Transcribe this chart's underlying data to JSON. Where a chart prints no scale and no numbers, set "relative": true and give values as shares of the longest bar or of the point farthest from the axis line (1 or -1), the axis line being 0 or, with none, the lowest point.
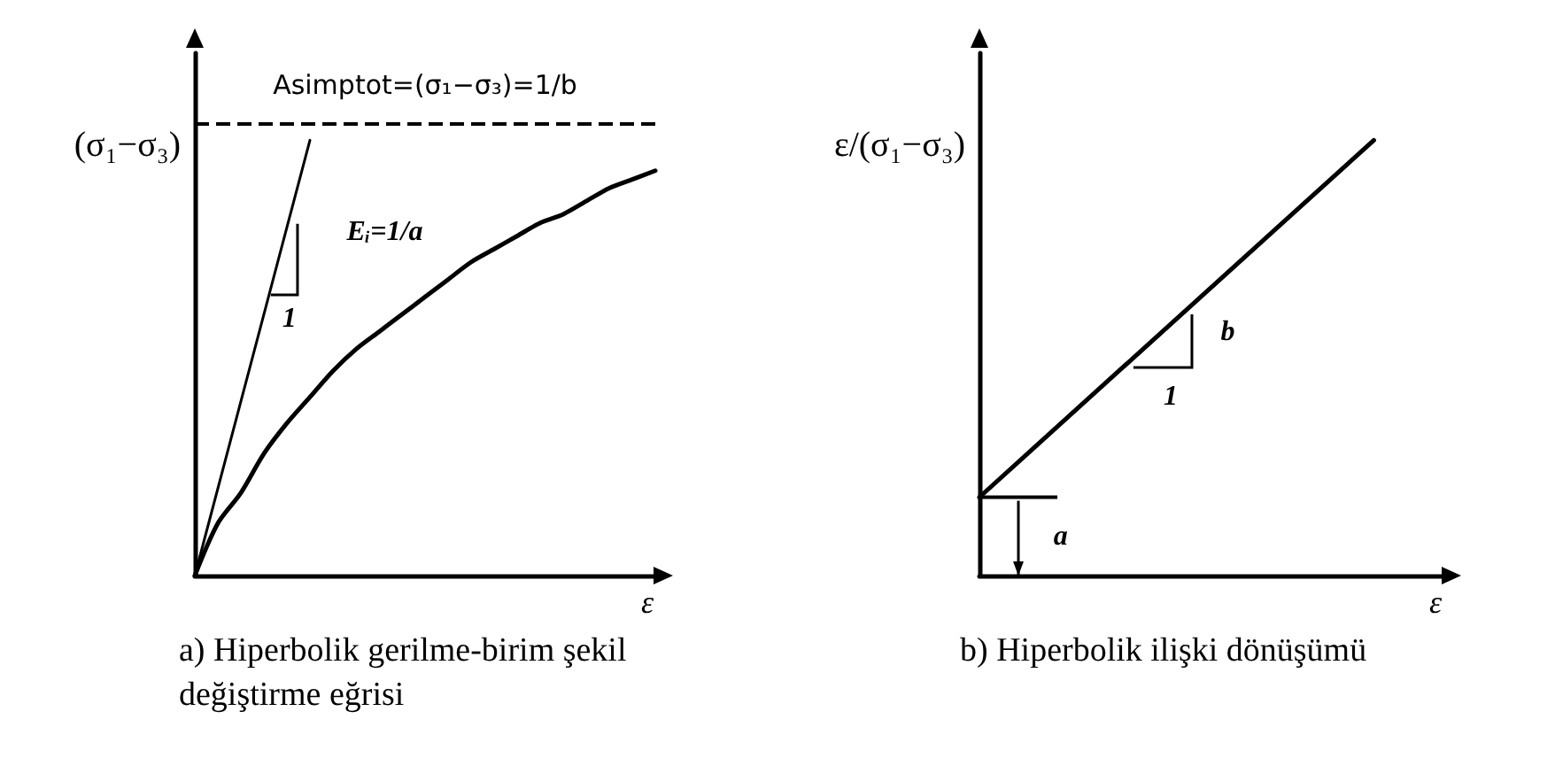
{
  "chart_data": [
    {
      "type": "line",
      "relative": true,
      "title": "a) Hiperbolik gerilme-birim şekil değiştirme eğrisi",
      "xlabel": "ε",
      "ylabel": "(σ₁−σ₃)",
      "categories": [
        null,
        null,
        null,
        null,
        null,
        null,
        null,
        null,
        null,
        null,
        null,
        null,
        null,
        null,
        null,
        null,
        null,
        null,
        null,
        null,
        null
      ],
      "series": [
        {
          "color": "#000000",
          "values": [
            0,
            0.12,
            0.19,
            0.28,
            0.35,
            0.41,
            0.47,
            0.52,
            0.56,
            0.6,
            0.64,
            0.68,
            0.72,
            0.75,
            0.78,
            0.81,
            0.83,
            0.86,
            0.89,
            0.91,
            0.93
          ]
        },
        {
          "color": "#000000",
          "values": [
            0,
            null,
            null,
            null,
            null,
            1,
            null,
            null,
            null,
            null,
            null,
            null,
            null,
            null,
            null,
            null,
            null,
            null,
            null,
            null,
            null
          ]
        }
      ],
      "ref_lines": [
        {
          "axis": "y",
          "value": 1.04,
          "label": "Asimptot=(σ₁−σ₃)=1/b",
          "line_style": "dashed",
          "color": "#000000"
        }
      ],
      "annotations": [
        "Eᵢ=1/a",
        "1"
      ],
      "grid": false,
      "marker": "none",
      "line_style": "solid"
    },
    {
      "type": "line",
      "relative": true,
      "title": "b) Hiperbolik ilişki dönüşümü",
      "xlabel": "ε",
      "ylabel": "ε/(σ₁−σ₃)",
      "categories": [
        null,
        null,
        null,
        null,
        null,
        null,
        null,
        null,
        null,
        null,
        null,
        null,
        null,
        null,
        null,
        null,
        null,
        null,
        null,
        null,
        null
      ],
      "series": [
        {
          "color": "#000000",
          "values": [
            0.18,
            null,
            null,
            null,
            null,
            null,
            null,
            null,
            null,
            null,
            null,
            null,
            null,
            null,
            null,
            null,
            null,
            1,
            null,
            null,
            null
          ]
        }
      ],
      "annotations": [
        "b",
        "1",
        "a"
      ],
      "grid": false,
      "marker": "none",
      "line_style": "solid"
    }
  ]
}
